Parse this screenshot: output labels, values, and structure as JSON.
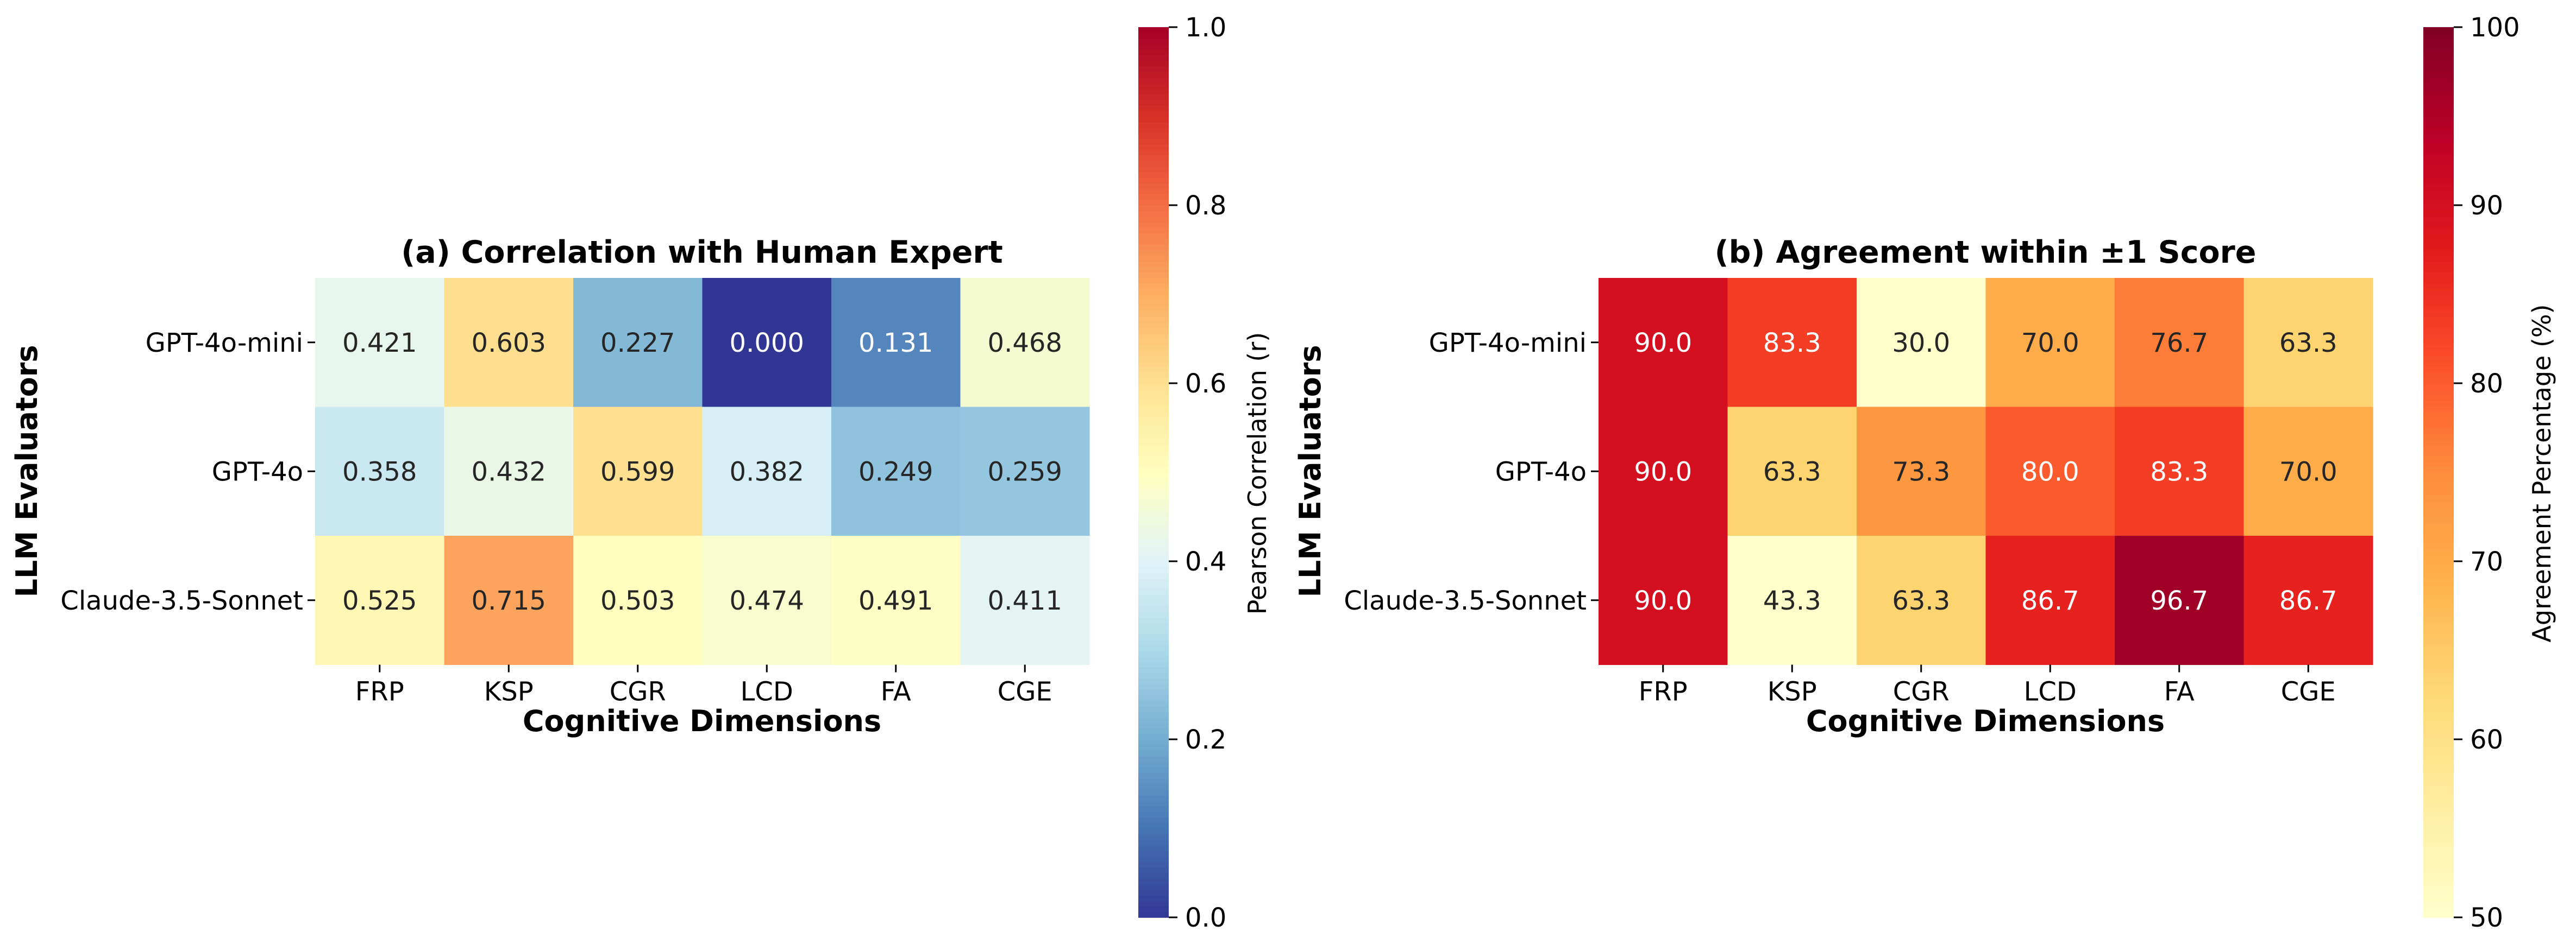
{
  "chart_data": [
    {
      "type": "heatmap",
      "title": "(a) Correlation with Human Expert",
      "xlabel": "Cognitive Dimensions",
      "ylabel": "LLM Evaluators",
      "x_categories": [
        "FRP",
        "KSP",
        "CGR",
        "LCD",
        "FA",
        "CGE"
      ],
      "y_categories": [
        "GPT-4o-mini",
        "GPT-4o",
        "Claude-3.5-Sonnet"
      ],
      "values": [
        [
          0.421,
          0.603,
          0.227,
          0.0,
          0.131,
          0.468
        ],
        [
          0.358,
          0.432,
          0.599,
          0.382,
          0.249,
          0.259
        ],
        [
          0.525,
          0.715,
          0.503,
          0.474,
          0.491,
          0.411
        ]
      ],
      "labels": [
        [
          "0.421",
          "0.603",
          "0.227",
          "0.000",
          "0.131",
          "0.468"
        ],
        [
          "0.358",
          "0.432",
          "0.599",
          "0.382",
          "0.249",
          "0.259"
        ],
        [
          "0.525",
          "0.715",
          "0.503",
          "0.474",
          "0.491",
          "0.411"
        ]
      ],
      "colormap": "RdYlBu_r",
      "colorbar": {
        "label": "Pearson Correlation (r)",
        "range": [
          0.0,
          1.0
        ],
        "ticks": [
          0.0,
          0.2,
          0.4,
          0.6,
          0.8,
          1.0
        ],
        "tick_labels": [
          "0.0",
          "0.2",
          "0.4",
          "0.6",
          "0.8",
          "1.0"
        ],
        "colors": [
          "#313695",
          "#4575b4",
          "#74add1",
          "#abd9e9",
          "#e0f3f8",
          "#ffffbf",
          "#fee090",
          "#fdae61",
          "#f46d43",
          "#d73027",
          "#a50026"
        ]
      }
    },
    {
      "type": "heatmap",
      "title": "(b) Agreement within ±1 Score",
      "xlabel": "Cognitive Dimensions",
      "ylabel": "LLM Evaluators",
      "x_categories": [
        "FRP",
        "KSP",
        "CGR",
        "LCD",
        "FA",
        "CGE"
      ],
      "y_categories": [
        "GPT-4o-mini",
        "GPT-4o",
        "Claude-3.5-Sonnet"
      ],
      "values": [
        [
          90.0,
          83.3,
          30.0,
          70.0,
          76.7,
          63.3
        ],
        [
          90.0,
          63.3,
          73.3,
          80.0,
          83.3,
          70.0
        ],
        [
          90.0,
          43.3,
          63.3,
          86.7,
          96.7,
          86.7
        ]
      ],
      "labels": [
        [
          "90.0",
          "83.3",
          "30.0",
          "70.0",
          "76.7",
          "63.3"
        ],
        [
          "90.0",
          "63.3",
          "73.3",
          "80.0",
          "83.3",
          "70.0"
        ],
        [
          "90.0",
          "43.3",
          "63.3",
          "86.7",
          "96.7",
          "86.7"
        ]
      ],
      "colormap": "YlOrRd",
      "colorbar": {
        "label": "Agreement Percentage (%)",
        "range": [
          50,
          100
        ],
        "ticks": [
          50,
          60,
          70,
          80,
          90,
          100
        ],
        "tick_labels": [
          "50",
          "60",
          "70",
          "80",
          "90",
          "100"
        ],
        "colors": [
          "#ffffcc",
          "#ffeda0",
          "#fed976",
          "#feb24c",
          "#fd8d3c",
          "#fc4e2a",
          "#e31a1c",
          "#bd0026",
          "#800026"
        ]
      }
    }
  ]
}
